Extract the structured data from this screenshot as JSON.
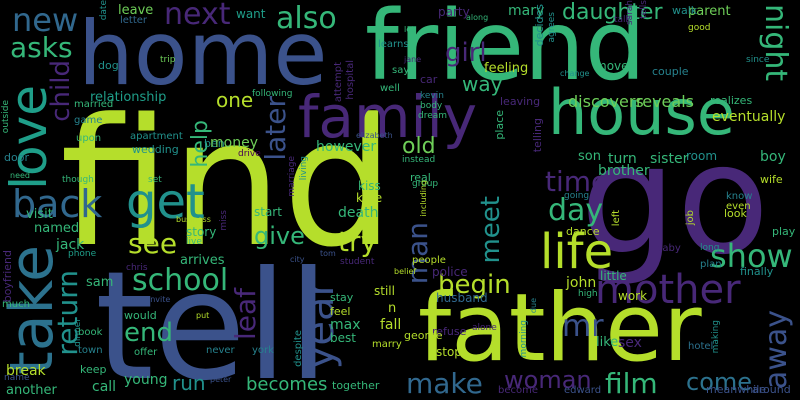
{
  "background": "#000000",
  "palette": [
    "#b5de2b",
    "#35b779",
    "#3b528b",
    "#482878",
    "#21918c",
    "#2c728e",
    "#6ece58",
    "#440154"
  ],
  "words": {
    "find": "find",
    "tell": "tell",
    "go": "go",
    "home": "home",
    "friend": "friend",
    "father": "father",
    "house": "house",
    "take": "take",
    "love": "love",
    "family": "family",
    "life": "life",
    "get": "get",
    "mother": "mother",
    "back": "back",
    "year": "year",
    "school": "school",
    "new": "new",
    "asks": "asks",
    "child": "child",
    "also": "also",
    "next": "next",
    "daughter": "daughter",
    "night": "night",
    "time": "time",
    "day": "day",
    "meet": "meet",
    "man": "man",
    "show": "show",
    "see": "see",
    "give": "give",
    "try": "try",
    "return": "return",
    "leaf": "leaf",
    "later": "later",
    "help": "help",
    "one": "one",
    "old": "old",
    "girl": "girl",
    "way": "way",
    "begin": "begin",
    "mr": "mr",
    "woman": "woman",
    "film": "film",
    "make": "make",
    "come": "come",
    "away": "away",
    "end": "end",
    "becomes": "becomes",
    "run": "run",
    "young": "young",
    "relationship": "relationship",
    "discovers": "discovers",
    "reveals": "reveals",
    "parent": "parent",
    "walk": "walk",
    "party": "party",
    "mary": "mary",
    "want": "want",
    "leave": "leave",
    "letter": "letter",
    "dog": "dog",
    "trip": "trip",
    "hospital": "hospital",
    "attempt": "attempt",
    "learns": "learns",
    "well": "well",
    "kevin": "kevin",
    "feeling": "feeling",
    "move": "move",
    "couple": "couple",
    "since": "since",
    "good": "good",
    "talk": "talk",
    "change": "change",
    "realizes": "realizes",
    "eventually": "eventually",
    "boy": "boy",
    "wife": "wife",
    "room": "room",
    "turn": "turn",
    "sister": "sister",
    "son": "son",
    "brother": "brother",
    "know": "know",
    "even": "even",
    "look": "look",
    "play": "play",
    "long": "long",
    "baby": "baby",
    "plan": "plan",
    "finally": "finally",
    "job": "job",
    "left": "left",
    "dance": "dance",
    "going": "going",
    "people": "people",
    "police": "police",
    "little": "little",
    "john": "john",
    "high": "high",
    "work": "work",
    "sex": "sex",
    "hotel": "hotel",
    "making": "making",
    "meanwhile": "meanwhile",
    "around": "around",
    "like": "like",
    "morning": "morning",
    "due": "due",
    "edward": "edward",
    "become": "become",
    "alone": "alone",
    "stop": "stop",
    "refuse": "refuse",
    "husband": "husband",
    "fall": "fall",
    "george": "george",
    "max": "max",
    "marry": "marry",
    "best": "best",
    "feel": "feel",
    "stay": "stay",
    "still": "still",
    "n": "n",
    "together": "together",
    "despite": "despite",
    "never": "never",
    "york": "york",
    "peter": "peter",
    "offer": "offer",
    "invite": "invite",
    "put": "put",
    "would": "would",
    "call": "call",
    "keep": "keep",
    "town": "town",
    "book": "book",
    "dinner": "dinner",
    "break": "break",
    "another": "another",
    "name": "name",
    "much": "much",
    "boyfriend": "boyfriend",
    "sam": "sam",
    "phone": "phone",
    "jack": "jack",
    "named": "named",
    "visit": "visit",
    "need": "need",
    "though": "though",
    "set": "set",
    "door": "door",
    "outside": "outside",
    "wedding": "wedding",
    "apartment": "apartment",
    "upon": "upon",
    "game": "game",
    "married": "married",
    "ben": "ben",
    "money": "money",
    "drive": "drive",
    "however": "however",
    "living": "living",
    "marriage": "marriage",
    "kiss": "kiss",
    "kate": "kate",
    "death": "death",
    "start": "start",
    "story": "story",
    "miss": "miss",
    "business": "business",
    "arrives": "arrives",
    "live": "live",
    "chris": "chris",
    "city": "city",
    "tom": "tom",
    "student": "student",
    "belief": "belief",
    "real": "real",
    "group": "group",
    "including": "including",
    "instead": "instead",
    "body": "body",
    "dream": "dream",
    "leaving": "leaving",
    "place": "place",
    "telling": "telling",
    "date": "date",
    "let": "let",
    "jane": "jane",
    "say": "say",
    "car": "car",
    "elizabeth": "elizabeth",
    "following": "following",
    "along": "along",
    "decides": "decides",
    "agrees": "agrees",
    "sarah": "sarah",
    "tells": "tells"
  }
}
